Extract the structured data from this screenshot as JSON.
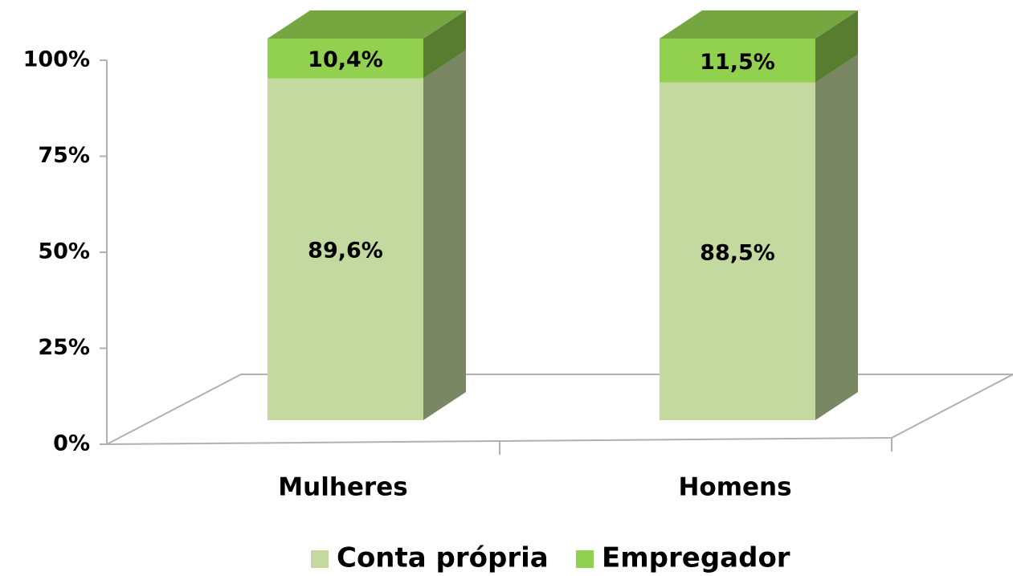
{
  "chart_data": {
    "type": "bar",
    "stacked": true,
    "categories": [
      "Mulheres",
      "Homens"
    ],
    "series": [
      {
        "name": "Conta própria",
        "color": "#c4d9a0",
        "values": [
          89.6,
          88.5
        ],
        "value_labels": [
          "89,6%",
          "88,5%"
        ]
      },
      {
        "name": "Empregador",
        "color": "#92d050",
        "values": [
          10.4,
          11.5
        ],
        "value_labels": [
          "10,4%",
          "11,5%"
        ]
      }
    ],
    "ylim": [
      0,
      100
    ],
    "yticks": [
      {
        "value": 0,
        "label": "0%"
      },
      {
        "value": 25,
        "label": "25%"
      },
      {
        "value": 50,
        "label": "50%"
      },
      {
        "value": 75,
        "label": "75%"
      },
      {
        "value": 100,
        "label": "100%"
      }
    ],
    "legend": "bottom"
  }
}
